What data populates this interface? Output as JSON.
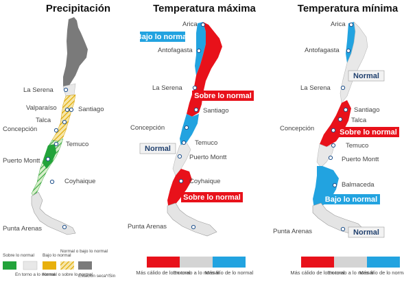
{
  "panels": [
    {
      "title": "Precipitación",
      "cities": {
        "la_serena": "La Serena",
        "valparaiso": "Valparaíso",
        "santiago": "Santiago",
        "talca": "Talca",
        "concepcion": "Concepción",
        "temuco": "Temuco",
        "puerto_montt": "Puerto Montt",
        "coyhaique": "Coyhaique",
        "punta_arenas": "Punta Arenas"
      },
      "legend": [
        {
          "label": "Sobre lo normal",
          "color": "#22a33a",
          "pattern": "solid"
        },
        {
          "label": "Bajo lo normal",
          "color": "#e8b00c",
          "pattern": "solid"
        },
        {
          "label": "En torno a lo normal",
          "color": "#e8e8e8",
          "pattern": "solid"
        },
        {
          "label": "Normal o bajo lo normal",
          "color": "#e8b00c",
          "pattern": "hatch"
        },
        {
          "label": "Normal o sobre lo normal",
          "color": "#22a33a",
          "pattern": "hatch"
        },
        {
          "label": "Estación seca*/Sin",
          "color": "#7a7a7a",
          "pattern": "solid"
        }
      ]
    },
    {
      "title": "Temperatura máxima",
      "cities": {
        "arica": "Arica",
        "antofagasta": "Antofagasta",
        "la_serena": "La Serena",
        "santiago": "Santiago",
        "concepcion": "Concepción",
        "temuco": "Temuco",
        "puerto_montt": "Puerto Montt",
        "coyhaique": "Coyhaique",
        "punta_arenas": "Punta Arenas"
      },
      "labels": {
        "north": "Bajo lo normal",
        "center": "Sobre lo normal",
        "south_center": "Normal",
        "south": "Sobre lo normal"
      },
      "legend": [
        {
          "label": "Más cálido de lo normal",
          "color": "#e8111a"
        },
        {
          "label": "En torno a lo normal",
          "color": "#d4d4d4"
        },
        {
          "label": "Más frío de lo normal",
          "color": "#22a3e0"
        }
      ]
    },
    {
      "title": "Temperatura mínima",
      "cities": {
        "arica": "Arica",
        "antofagasta": "Antofagasta",
        "la_serena": "La Serena",
        "santiago": "Santiago",
        "talca": "Talca",
        "concepcion": "Concepción",
        "temuco": "Temuco",
        "puerto_montt": "Puerto Montt",
        "balmaceda": "Balmaceda",
        "punta_arenas": "Punta Arenas"
      },
      "labels": {
        "north": "Normal",
        "center": "Sobre lo normal",
        "south": "Bajo lo normal",
        "far_south": "Normal"
      },
      "legend": [
        {
          "label": "Más cálido de lo normal",
          "color": "#e8111a"
        },
        {
          "label": "En torno a lo normal",
          "color": "#d4d4d4"
        },
        {
          "label": "Más frío de lo normal",
          "color": "#22a3e0"
        }
      ]
    }
  ],
  "colors": {
    "red": "#e8111a",
    "blue": "#22a3e0",
    "gray_normal": "#e6e6e6",
    "dark_gray": "#7a7a7a",
    "green": "#22a33a",
    "yellow": "#e8b00c",
    "label_navy": "#1f3f6e"
  }
}
